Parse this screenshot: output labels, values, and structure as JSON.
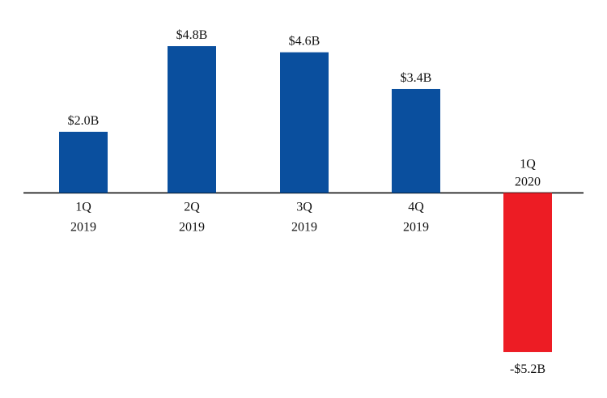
{
  "chart_data": {
    "type": "bar",
    "title": "",
    "xlabel": "",
    "ylabel": "",
    "categories": [
      [
        "1Q",
        "2019"
      ],
      [
        "2Q",
        "2019"
      ],
      [
        "3Q",
        "2019"
      ],
      [
        "4Q",
        "2019"
      ],
      [
        "1Q",
        "2020"
      ]
    ],
    "values": [
      2.0,
      4.8,
      4.6,
      3.4,
      -5.2
    ],
    "value_labels": [
      "$2.0B",
      "$4.8B",
      "$4.6B",
      "$3.4B",
      "-$5.2B"
    ],
    "ylim": [
      -5.2,
      4.8
    ],
    "grid": false,
    "colors": {
      "positive": "#0A4F9E",
      "negative": "#ED1C24",
      "axis": "#000000"
    }
  }
}
